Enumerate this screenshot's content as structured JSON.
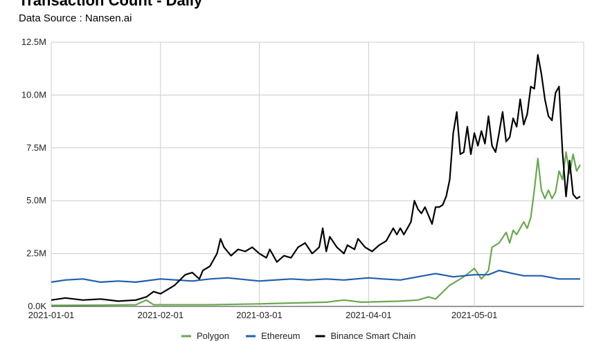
{
  "title": "Transaction Count - Daily",
  "subtitle": "Data Source : Nansen.ai",
  "chart_data": {
    "type": "line",
    "title": "Transaction Count - Daily",
    "subtitle": "Data Source : Nansen.ai",
    "xlabel": "",
    "ylabel": "",
    "x_start": "2021-01-01",
    "x_end": "2021-05-31",
    "x_ticks": [
      "2021-01-01",
      "2021-02-01",
      "2021-03-01",
      "2021-04-01",
      "2021-05-01"
    ],
    "ylim": [
      0,
      12500000
    ],
    "y_ticks": [
      0,
      2500000,
      5000000,
      7500000,
      10000000,
      12500000
    ],
    "y_tick_labels": [
      "0.0K",
      "2.5M",
      "5.0M",
      "7.5M",
      "10.0M",
      "12.5M"
    ],
    "grid": true,
    "legend_position": "bottom",
    "series": [
      {
        "name": "Polygon",
        "color": "#6aa84f",
        "points": [
          [
            "2021-01-01",
            50000
          ],
          [
            "2021-01-15",
            60000
          ],
          [
            "2021-01-25",
            80000
          ],
          [
            "2021-01-28",
            300000
          ],
          [
            "2021-01-30",
            80000
          ],
          [
            "2021-02-15",
            80000
          ],
          [
            "2021-03-01",
            120000
          ],
          [
            "2021-03-20",
            200000
          ],
          [
            "2021-03-25",
            300000
          ],
          [
            "2021-03-30",
            200000
          ],
          [
            "2021-04-10",
            250000
          ],
          [
            "2021-04-15",
            300000
          ],
          [
            "2021-04-18",
            450000
          ],
          [
            "2021-04-20",
            350000
          ],
          [
            "2021-04-24",
            1000000
          ],
          [
            "2021-04-28",
            1400000
          ],
          [
            "2021-05-01",
            1800000
          ],
          [
            "2021-05-03",
            1300000
          ],
          [
            "2021-05-05",
            1700000
          ],
          [
            "2021-05-06",
            2800000
          ],
          [
            "2021-05-08",
            3000000
          ],
          [
            "2021-05-10",
            3500000
          ],
          [
            "2021-05-11",
            3000000
          ],
          [
            "2021-05-12",
            3600000
          ],
          [
            "2021-05-13",
            3400000
          ],
          [
            "2021-05-15",
            4000000
          ],
          [
            "2021-05-16",
            3700000
          ],
          [
            "2021-05-17",
            4200000
          ],
          [
            "2021-05-18",
            5500000
          ],
          [
            "2021-05-19",
            7000000
          ],
          [
            "2021-05-20",
            5500000
          ],
          [
            "2021-05-21",
            5100000
          ],
          [
            "2021-05-22",
            5500000
          ],
          [
            "2021-05-23",
            5100000
          ],
          [
            "2021-05-24",
            5400000
          ],
          [
            "2021-05-25",
            6400000
          ],
          [
            "2021-05-26",
            6000000
          ],
          [
            "2021-05-27",
            7300000
          ],
          [
            "2021-05-28",
            6300000
          ],
          [
            "2021-05-29",
            7200000
          ],
          [
            "2021-05-30",
            6400000
          ],
          [
            "2021-05-31",
            6700000
          ]
        ]
      },
      {
        "name": "Ethereum",
        "color": "#1f5fad",
        "points": [
          [
            "2021-01-01",
            1150000
          ],
          [
            "2021-01-05",
            1250000
          ],
          [
            "2021-01-10",
            1300000
          ],
          [
            "2021-01-15",
            1150000
          ],
          [
            "2021-01-20",
            1200000
          ],
          [
            "2021-01-25",
            1150000
          ],
          [
            "2021-02-01",
            1300000
          ],
          [
            "2021-02-10",
            1200000
          ],
          [
            "2021-02-15",
            1300000
          ],
          [
            "2021-02-20",
            1350000
          ],
          [
            "2021-03-01",
            1200000
          ],
          [
            "2021-03-10",
            1300000
          ],
          [
            "2021-03-15",
            1250000
          ],
          [
            "2021-03-20",
            1300000
          ],
          [
            "2021-03-25",
            1250000
          ],
          [
            "2021-04-01",
            1350000
          ],
          [
            "2021-04-05",
            1300000
          ],
          [
            "2021-04-10",
            1250000
          ],
          [
            "2021-04-15",
            1400000
          ],
          [
            "2021-04-20",
            1550000
          ],
          [
            "2021-04-25",
            1400000
          ],
          [
            "2021-05-01",
            1500000
          ],
          [
            "2021-05-05",
            1500000
          ],
          [
            "2021-05-08",
            1700000
          ],
          [
            "2021-05-12",
            1550000
          ],
          [
            "2021-05-15",
            1450000
          ],
          [
            "2021-05-20",
            1450000
          ],
          [
            "2021-05-25",
            1300000
          ],
          [
            "2021-05-31",
            1300000
          ]
        ]
      },
      {
        "name": "Binance Smart Chain",
        "color": "#000000",
        "points": [
          [
            "2021-01-01",
            300000
          ],
          [
            "2021-01-05",
            400000
          ],
          [
            "2021-01-10",
            300000
          ],
          [
            "2021-01-15",
            350000
          ],
          [
            "2021-01-20",
            250000
          ],
          [
            "2021-01-25",
            300000
          ],
          [
            "2021-01-28",
            450000
          ],
          [
            "2021-01-30",
            700000
          ],
          [
            "2021-02-01",
            600000
          ],
          [
            "2021-02-03",
            800000
          ],
          [
            "2021-02-05",
            1000000
          ],
          [
            "2021-02-08",
            1500000
          ],
          [
            "2021-02-10",
            1600000
          ],
          [
            "2021-02-12",
            1300000
          ],
          [
            "2021-02-13",
            1700000
          ],
          [
            "2021-02-15",
            1900000
          ],
          [
            "2021-02-17",
            2500000
          ],
          [
            "2021-02-18",
            3200000
          ],
          [
            "2021-02-19",
            2800000
          ],
          [
            "2021-02-21",
            2400000
          ],
          [
            "2021-02-23",
            2700000
          ],
          [
            "2021-02-25",
            2600000
          ],
          [
            "2021-02-27",
            2800000
          ],
          [
            "2021-03-01",
            2500000
          ],
          [
            "2021-03-03",
            2300000
          ],
          [
            "2021-03-04",
            2700000
          ],
          [
            "2021-03-06",
            2100000
          ],
          [
            "2021-03-08",
            2400000
          ],
          [
            "2021-03-10",
            2300000
          ],
          [
            "2021-03-12",
            2800000
          ],
          [
            "2021-03-14",
            3000000
          ],
          [
            "2021-03-16",
            2500000
          ],
          [
            "2021-03-18",
            2800000
          ],
          [
            "2021-03-19",
            3700000
          ],
          [
            "2021-03-20",
            2600000
          ],
          [
            "2021-03-21",
            3300000
          ],
          [
            "2021-03-23",
            2800000
          ],
          [
            "2021-03-25",
            2500000
          ],
          [
            "2021-03-26",
            2900000
          ],
          [
            "2021-03-28",
            2700000
          ],
          [
            "2021-03-29",
            3200000
          ],
          [
            "2021-03-31",
            2800000
          ],
          [
            "2021-04-02",
            2600000
          ],
          [
            "2021-04-04",
            2900000
          ],
          [
            "2021-04-06",
            3100000
          ],
          [
            "2021-04-08",
            3700000
          ],
          [
            "2021-04-09",
            3400000
          ],
          [
            "2021-04-10",
            3700000
          ],
          [
            "2021-04-11",
            3400000
          ],
          [
            "2021-04-13",
            4000000
          ],
          [
            "2021-04-14",
            5000000
          ],
          [
            "2021-04-15",
            4600000
          ],
          [
            "2021-04-16",
            4400000
          ],
          [
            "2021-04-17",
            4700000
          ],
          [
            "2021-04-18",
            4300000
          ],
          [
            "2021-04-19",
            3900000
          ],
          [
            "2021-04-20",
            4700000
          ],
          [
            "2021-04-21",
            4700000
          ],
          [
            "2021-04-22",
            4800000
          ],
          [
            "2021-04-23",
            5200000
          ],
          [
            "2021-04-24",
            6000000
          ],
          [
            "2021-04-25",
            8200000
          ],
          [
            "2021-04-26",
            9200000
          ],
          [
            "2021-04-27",
            7200000
          ],
          [
            "2021-04-28",
            7300000
          ],
          [
            "2021-04-29",
            8500000
          ],
          [
            "2021-04-30",
            7200000
          ],
          [
            "2021-05-01",
            8200000
          ],
          [
            "2021-05-02",
            7600000
          ],
          [
            "2021-05-03",
            8300000
          ],
          [
            "2021-05-04",
            7700000
          ],
          [
            "2021-05-05",
            9000000
          ],
          [
            "2021-05-06",
            7600000
          ],
          [
            "2021-05-07",
            7300000
          ],
          [
            "2021-05-08",
            8200000
          ],
          [
            "2021-05-09",
            9200000
          ],
          [
            "2021-05-10",
            7800000
          ],
          [
            "2021-05-11",
            8000000
          ],
          [
            "2021-05-12",
            8900000
          ],
          [
            "2021-05-13",
            8500000
          ],
          [
            "2021-05-14",
            9800000
          ],
          [
            "2021-05-15",
            8600000
          ],
          [
            "2021-05-16",
            9100000
          ],
          [
            "2021-05-17",
            10400000
          ],
          [
            "2021-05-18",
            10300000
          ],
          [
            "2021-05-19",
            11900000
          ],
          [
            "2021-05-20",
            11000000
          ],
          [
            "2021-05-21",
            9800000
          ],
          [
            "2021-05-22",
            9000000
          ],
          [
            "2021-05-23",
            8800000
          ],
          [
            "2021-05-24",
            10100000
          ],
          [
            "2021-05-25",
            10400000
          ],
          [
            "2021-05-26",
            7300000
          ],
          [
            "2021-05-27",
            5200000
          ],
          [
            "2021-05-28",
            6900000
          ],
          [
            "2021-05-29",
            5300000
          ],
          [
            "2021-05-30",
            5100000
          ],
          [
            "2021-05-31",
            5200000
          ]
        ]
      }
    ]
  }
}
